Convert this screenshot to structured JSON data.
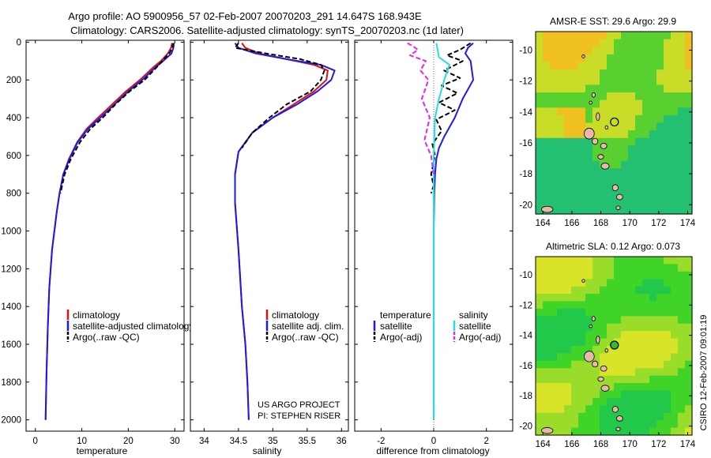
{
  "header": {
    "line1": "Argo profile: AO 5900956_57 02-Feb-2007 20070203_291 14.647S 168.943E",
    "line2": "Climatology: CARS2006. Satellite-adjusted climatology: synTS_20070203.nc (1d later)"
  },
  "colors": {
    "climatology": "#dd1111",
    "satellite": "#1a1aee",
    "argo": "#000000",
    "sal_satellite": "#22dddd",
    "sal_argo": "#ee22ee"
  },
  "chart_data": [
    {
      "type": "line",
      "id": "temperature",
      "xlabel": "temperature",
      "ylabel": "",
      "xlim": [
        -2,
        32
      ],
      "ylim": [
        2060,
        -10
      ],
      "xticks": [
        0,
        10,
        20,
        30
      ],
      "yticks": [
        0,
        200,
        400,
        600,
        800,
        1000,
        1200,
        1400,
        1600,
        1800,
        2000
      ],
      "legend": [
        "climatology",
        "satellite-adjusted climatology",
        "Argo(..raw -QC)"
      ],
      "series": [
        {
          "name": "climatology",
          "color": "#dd1111",
          "dash": "solid",
          "x": [
            29.4,
            29.2,
            28.5,
            27.0,
            25.5,
            22.5,
            19.5,
            16.5,
            13.5,
            11.0,
            9.0,
            7.2,
            6.0,
            5.2,
            4.6,
            3.6,
            3.0,
            2.7,
            2.4,
            2.2
          ],
          "y": [
            5,
            30,
            60,
            100,
            130,
            200,
            260,
            330,
            400,
            460,
            530,
            620,
            700,
            800,
            900,
            1100,
            1300,
            1500,
            1750,
            2000
          ]
        },
        {
          "name": "satellite-adjusted climatology",
          "color": "#1a1aee",
          "dash": "solid",
          "x": [
            29.8,
            29.7,
            29.3,
            27.5,
            26.0,
            23.0,
            20.0,
            17.0,
            14.0,
            11.3,
            9.1,
            7.3,
            6.0,
            5.2,
            4.6,
            3.6,
            3.0,
            2.7,
            2.4,
            2.2
          ],
          "y": [
            5,
            30,
            60,
            100,
            130,
            200,
            260,
            330,
            400,
            460,
            530,
            620,
            700,
            800,
            900,
            1100,
            1300,
            1500,
            1750,
            2000
          ]
        },
        {
          "name": "Argo(..raw -QC)",
          "color": "#000000",
          "dash": "dashed",
          "x": [
            29.7,
            29.5,
            28.8,
            27.3,
            26.2,
            23.5,
            20.3,
            17.2,
            14.5,
            11.8,
            9.6,
            7.6,
            6.3,
            5.4
          ],
          "y": [
            5,
            30,
            60,
            100,
            130,
            200,
            260,
            330,
            400,
            460,
            530,
            620,
            700,
            800
          ]
        }
      ]
    },
    {
      "type": "line",
      "id": "salinity",
      "xlabel": "salinity",
      "ylabel": "",
      "xlim": [
        33.8,
        36.1
      ],
      "ylim": [
        2060,
        -10
      ],
      "xticks": [
        34,
        34.5,
        35,
        35.5,
        36
      ],
      "legend": [
        "climatology",
        "satellite adj. clim.",
        "Argo(..raw -QC)"
      ],
      "series": [
        {
          "name": "climatology",
          "color": "#dd1111",
          "dash": "solid",
          "x": [
            34.55,
            34.6,
            34.8,
            35.2,
            35.6,
            35.8,
            35.78,
            35.6,
            35.3,
            35.0,
            34.7,
            34.5,
            34.45,
            34.45,
            34.5,
            34.55,
            34.6,
            34.63,
            34.65
          ],
          "y": [
            5,
            30,
            60,
            90,
            120,
            150,
            200,
            260,
            330,
            400,
            480,
            580,
            700,
            850,
            1100,
            1400,
            1600,
            1800,
            2000
          ]
        },
        {
          "name": "satellite adj. clim.",
          "color": "#1a1aee",
          "dash": "solid",
          "x": [
            34.45,
            34.5,
            34.75,
            35.2,
            35.7,
            35.9,
            35.85,
            35.65,
            35.35,
            35.0,
            34.7,
            34.5,
            34.45,
            34.45,
            34.5,
            34.55,
            34.6,
            34.63,
            34.65
          ],
          "y": [
            5,
            30,
            60,
            90,
            120,
            150,
            200,
            260,
            330,
            400,
            480,
            580,
            700,
            850,
            1100,
            1400,
            1600,
            1800,
            2000
          ]
        },
        {
          "name": "Argo(..raw -QC)",
          "color": "#000000",
          "dash": "dashed",
          "x": [
            34.5,
            34.45,
            34.9,
            35.4,
            35.7,
            35.75,
            35.7,
            35.55,
            35.2,
            34.95,
            34.7,
            34.55
          ],
          "y": [
            5,
            30,
            60,
            90,
            120,
            150,
            200,
            260,
            330,
            400,
            480,
            560
          ]
        }
      ]
    },
    {
      "type": "line",
      "id": "difference",
      "xlabel": "difference from climatology",
      "ylabel": "",
      "xlim": [
        -3,
        3.0
      ],
      "ylim": [
        2060,
        -10
      ],
      "xticks": [
        -2,
        0,
        2
      ],
      "legend_titles": [
        "temperature",
        "salinity"
      ],
      "legend": [
        "satellite",
        "Argo(-adj)",
        "satellite",
        "Argo(-adj)"
      ],
      "series": [
        {
          "name": "temperature satellite",
          "color": "#1a1aee",
          "dash": "solid",
          "x": [
            1.5,
            1.3,
            1.2,
            1.4,
            1.5,
            1.1,
            0.8,
            0.6,
            0.4,
            0.2,
            0.1,
            0.05,
            0.02,
            0.0,
            0.0
          ],
          "y": [
            5,
            30,
            60,
            100,
            200,
            300,
            400,
            450,
            500,
            560,
            620,
            700,
            800,
            1000,
            2000
          ]
        },
        {
          "name": "temperature Argo(-adj)",
          "color": "#000000",
          "dash": "dashed",
          "x": [
            1.4,
            1.0,
            0.5,
            1.1,
            0.4,
            1.0,
            0.3,
            0.9,
            0.2,
            0.8,
            0.1,
            0.3,
            -0.05,
            0.05,
            -0.1,
            0.0,
            -0.1
          ],
          "y": [
            5,
            40,
            70,
            100,
            150,
            190,
            230,
            270,
            320,
            360,
            410,
            470,
            540,
            600,
            700,
            760,
            800
          ]
        },
        {
          "name": "salinity satellite",
          "color": "#22dddd",
          "dash": "solid",
          "x": [
            0.1,
            0.15,
            0.2,
            0.6,
            0.4,
            0.2,
            0.05,
            0.0,
            0.0
          ],
          "y": [
            5,
            40,
            80,
            120,
            200,
            300,
            400,
            600,
            2000
          ]
        },
        {
          "name": "salinity Argo(-adj)",
          "color": "#ee22ee",
          "dash": "dashed",
          "x": [
            -1.0,
            -0.8,
            -0.6,
            -0.9,
            -0.3,
            -0.5,
            -0.2,
            -0.45,
            -0.15,
            -0.35,
            -0.1,
            0.0
          ],
          "y": [
            5,
            20,
            40,
            70,
            100,
            150,
            200,
            300,
            400,
            520,
            600,
            700
          ]
        }
      ]
    },
    {
      "type": "heatmap",
      "id": "sst-map",
      "title": "AMSR-E SST: 29.6 Argo: 29.9",
      "xticks": [
        164,
        166,
        168,
        170,
        172,
        174
      ],
      "yticks": [
        -10,
        -12,
        -14,
        -16,
        -18,
        -20
      ],
      "xlim": [
        163.5,
        174.3
      ],
      "ylim": [
        -20.6,
        -8.8
      ],
      "argo_position": [
        168.943,
        -14.647
      ]
    },
    {
      "type": "heatmap",
      "id": "sla-map",
      "title": "Altimetric SLA: 0.12 Argo: 0.073",
      "xticks": [
        164,
        166,
        168,
        170,
        172,
        174
      ],
      "yticks": [
        -10,
        -12,
        -14,
        -16,
        -18,
        -20
      ],
      "xlim": [
        163.5,
        174.3
      ],
      "ylim": [
        -20.6,
        -8.8
      ],
      "argo_position": [
        168.943,
        -14.647
      ]
    }
  ],
  "text": {
    "project_line1": "US ARGO PROJECT",
    "project_line2": "PI: STEPHEN RISER",
    "stamp": "CSIRO 12-Feb-2007 09:01:19",
    "diff_leg_temp_title": "temperature",
    "diff_leg_sal_title": "salinity"
  }
}
